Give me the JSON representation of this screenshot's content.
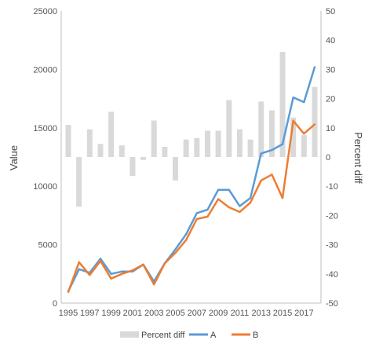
{
  "chart_data": {
    "type": "bar+line",
    "x": [
      1995,
      1996,
      1997,
      1998,
      1999,
      2000,
      2001,
      2002,
      2003,
      2004,
      2005,
      2006,
      2007,
      2008,
      2009,
      2010,
      2011,
      2012,
      2013,
      2014,
      2015,
      2016,
      2017,
      2018
    ],
    "x_tick_labels": [
      "1995",
      "1997",
      "1999",
      "2001",
      "2003",
      "2005",
      "2007",
      "2009",
      "2011",
      "2013",
      "2015",
      "2017"
    ],
    "ylabel": "Value",
    "y2label": "Percent diff",
    "ylim": [
      0,
      25000
    ],
    "y_ticks": [
      "0",
      "5000",
      "10000",
      "15000",
      "20000",
      "25000"
    ],
    "y2lim": [
      -50,
      50
    ],
    "y2_ticks": [
      "-50",
      "-40",
      "-30",
      "-20",
      "-10",
      "0",
      "10",
      "20",
      "30",
      "40",
      "50"
    ],
    "grid": false,
    "legend_position": "bottom",
    "bars": {
      "name": "Percent diff",
      "axis": "secondary",
      "color": "#d9d9d9",
      "values": [
        11,
        -17,
        9.5,
        4.5,
        15.5,
        4,
        -6.5,
        -1,
        12.5,
        3.5,
        -8,
        6,
        6.5,
        9,
        9,
        19.5,
        9.5,
        6,
        19,
        16,
        36,
        13.5,
        7.5,
        24
      ]
    },
    "series": [
      {
        "name": "A",
        "axis": "primary",
        "color": "#5b9bd5",
        "values": [
          1000,
          2900,
          2600,
          3800,
          2500,
          2700,
          2700,
          3300,
          1850,
          3400,
          4600,
          5900,
          7700,
          8000,
          9700,
          9700,
          8300,
          9000,
          12800,
          13100,
          13600,
          17600,
          17200,
          20200
        ]
      },
      {
        "name": "B",
        "axis": "primary",
        "color": "#ed7d31",
        "values": [
          950,
          3500,
          2400,
          3600,
          2100,
          2500,
          2800,
          3300,
          1600,
          3400,
          4300,
          5400,
          7200,
          7400,
          8900,
          8200,
          7800,
          8600,
          10500,
          11000,
          9000,
          15600,
          14500,
          15300
        ]
      }
    ]
  }
}
